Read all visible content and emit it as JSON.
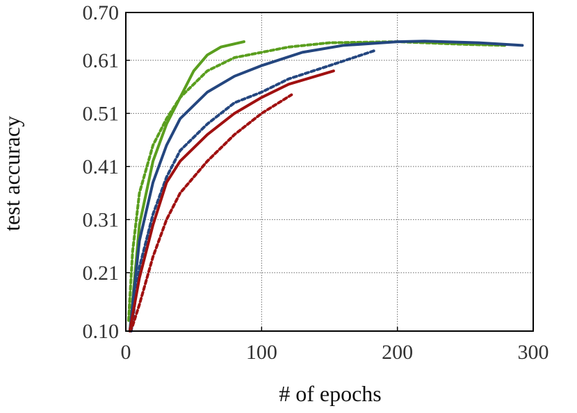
{
  "chart_data": {
    "type": "line",
    "xlabel": "# of epochs",
    "ylabel": "test accuracy",
    "xlim": [
      0,
      300
    ],
    "ylim": [
      0.1,
      0.7
    ],
    "xticks": [
      0,
      100,
      200,
      300
    ],
    "yticks": [
      {
        "value": 0.1,
        "label": "0.10"
      },
      0.21,
      0.31,
      0.41,
      0.51,
      0.61,
      {
        "value": 0.7,
        "label": "0.70"
      }
    ],
    "grid": true,
    "series": [
      {
        "color": "#5a9e1e",
        "dashed": false,
        "x": [
          3,
          10,
          20,
          30,
          40,
          50,
          60,
          70,
          87
        ],
        "values": [
          0.1,
          0.3,
          0.42,
          0.49,
          0.54,
          0.59,
          0.62,
          0.635,
          0.645
        ]
      },
      {
        "color": "#5a9e1e",
        "dashed": true,
        "x": [
          2,
          5,
          10,
          20,
          30,
          40,
          60,
          80,
          100,
          120,
          150,
          200,
          250,
          280
        ],
        "values": [
          0.12,
          0.25,
          0.36,
          0.45,
          0.5,
          0.54,
          0.59,
          0.615,
          0.625,
          0.635,
          0.643,
          0.645,
          0.64,
          0.638
        ]
      },
      {
        "color": "#24467f",
        "dashed": false,
        "x": [
          3,
          5,
          10,
          20,
          30,
          40,
          60,
          80,
          100,
          130,
          160,
          200,
          220,
          260,
          292
        ],
        "values": [
          0.1,
          0.15,
          0.27,
          0.38,
          0.45,
          0.5,
          0.55,
          0.58,
          0.6,
          0.625,
          0.638,
          0.645,
          0.646,
          0.643,
          0.638
        ]
      },
      {
        "color": "#24467f",
        "dashed": true,
        "x": [
          4,
          10,
          20,
          30,
          40,
          60,
          80,
          100,
          120,
          150,
          183
        ],
        "values": [
          0.1,
          0.22,
          0.32,
          0.39,
          0.44,
          0.49,
          0.53,
          0.55,
          0.575,
          0.6,
          0.628
        ]
      },
      {
        "color": "#a01010",
        "dashed": false,
        "x": [
          3,
          5,
          10,
          20,
          30,
          40,
          60,
          80,
          100,
          120,
          153
        ],
        "values": [
          0.1,
          0.13,
          0.2,
          0.3,
          0.38,
          0.42,
          0.47,
          0.51,
          0.54,
          0.565,
          0.59
        ]
      },
      {
        "color": "#a01010",
        "dashed": true,
        "x": [
          3,
          5,
          10,
          20,
          30,
          40,
          60,
          80,
          100,
          122
        ],
        "values": [
          0.1,
          0.11,
          0.15,
          0.24,
          0.31,
          0.36,
          0.42,
          0.47,
          0.51,
          0.545
        ]
      }
    ]
  }
}
